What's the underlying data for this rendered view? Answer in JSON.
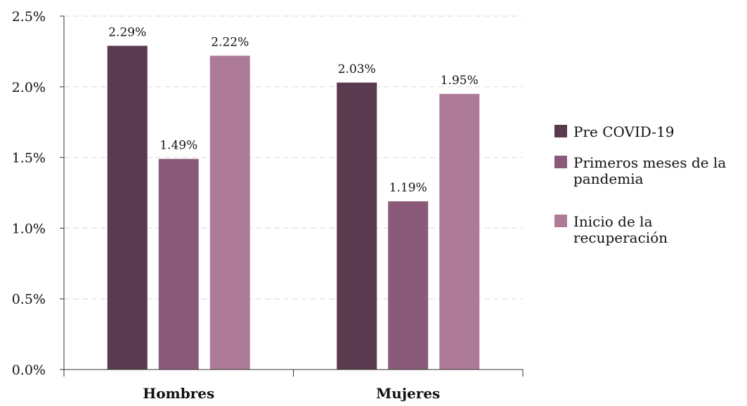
{
  "chart_data": {
    "type": "bar",
    "title": "",
    "xlabel": "",
    "ylabel": "",
    "categories": [
      "Hombres",
      "Mujeres"
    ],
    "series": [
      {
        "name": "Pre COVID-19",
        "values": [
          2.29,
          2.03
        ],
        "labels": [
          "2.29%",
          "2.03%"
        ],
        "color": "#5a3a4f"
      },
      {
        "name": "Primeros meses de la pandemia",
        "values": [
          1.49,
          1.19
        ],
        "labels": [
          "1.49%",
          "1.19%"
        ],
        "color": "#8a5b78"
      },
      {
        "name": "Inicio de la recuperación",
        "values": [
          2.22,
          1.95
        ],
        "labels": [
          "2.22%",
          "1.95%"
        ],
        "color": "#ad7b98"
      }
    ],
    "ylim": [
      0,
      2.5
    ],
    "yticks": [
      0,
      0.5,
      1.0,
      1.5,
      2.0,
      2.5
    ],
    "ytick_labels": [
      "0.0%",
      "0.5%",
      "1.0%",
      "1.5%",
      "2.0%",
      "2.5%"
    ],
    "grid": true,
    "legend_position": "right"
  }
}
